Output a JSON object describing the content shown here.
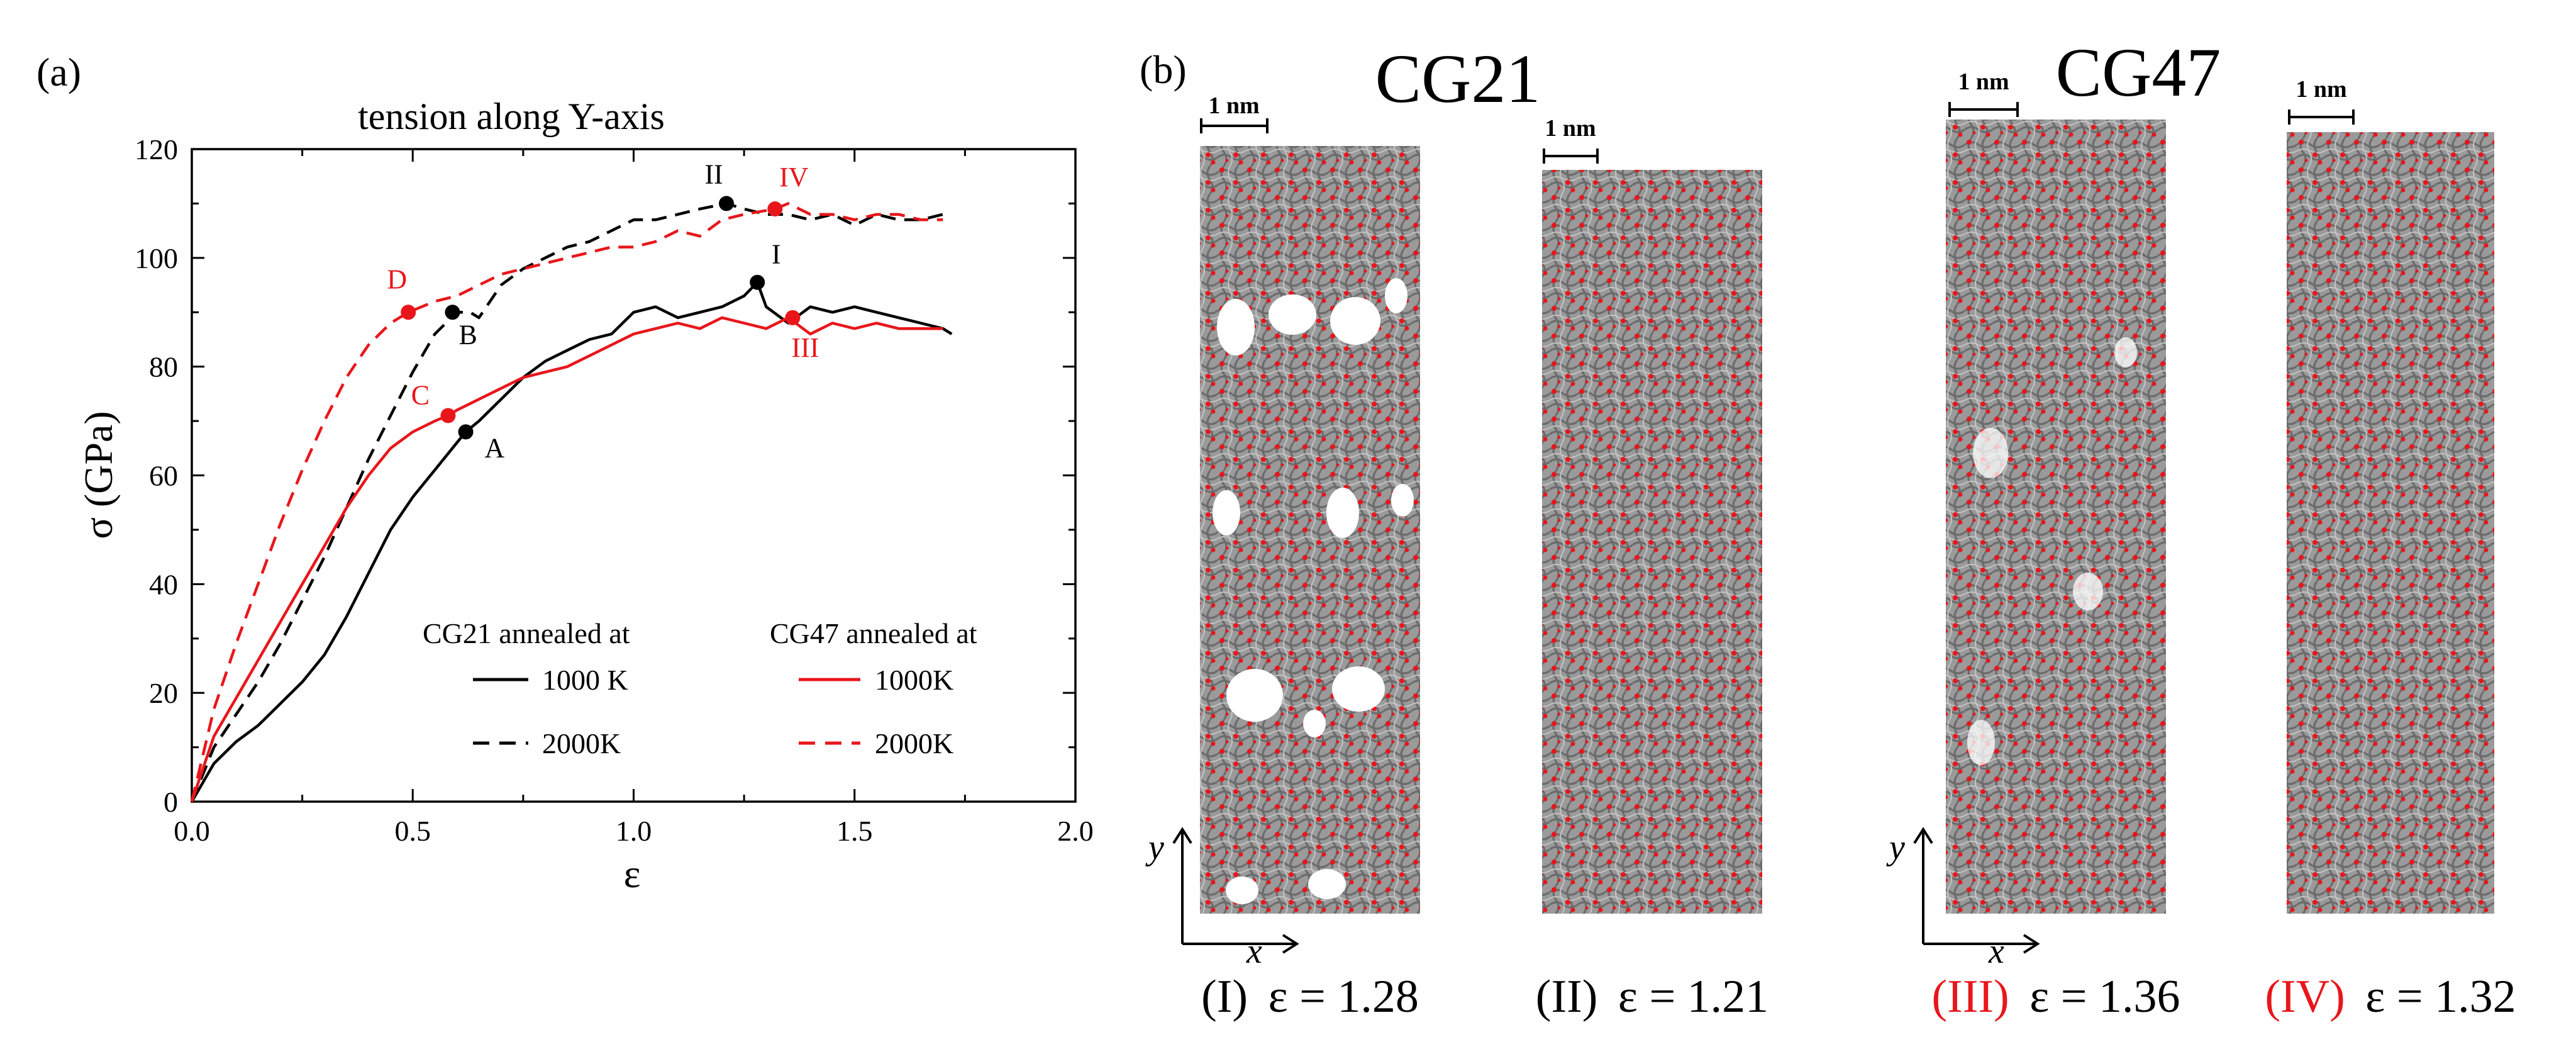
{
  "panels": {
    "a_label": "(a)",
    "b_label": "(b)"
  },
  "colors": {
    "cg21": "#000000",
    "cg47": "#e8161b",
    "atoms_gray": "#7a7a7a",
    "atoms_red": "#e8161b"
  },
  "chart_data": {
    "type": "line",
    "title": "tension along Y-axis",
    "xlabel": "ε",
    "ylabel": "σ (GPa)",
    "xlim": [
      0,
      2.0
    ],
    "ylim": [
      0,
      120
    ],
    "xticks": [
      0,
      0.5,
      1.0,
      1.5,
      2.0
    ],
    "xtick_labels": [
      "0.0",
      "0.5",
      "1.0",
      "1.5",
      "2.0"
    ],
    "yticks": [
      0,
      20,
      40,
      60,
      80,
      100,
      120
    ],
    "ytick_labels": [
      "0",
      "20",
      "40",
      "60",
      "80",
      "100",
      "120"
    ],
    "legend": {
      "group1_title": "CG21 annealed at",
      "group2_title": "CG47 annealed at"
    },
    "series": [
      {
        "name": "1000 K",
        "group": "CG21",
        "color": "#000000",
        "dash": "solid",
        "x": [
          0,
          0.05,
          0.1,
          0.15,
          0.2,
          0.25,
          0.3,
          0.35,
          0.4,
          0.45,
          0.5,
          0.55,
          0.6,
          0.62,
          0.65,
          0.7,
          0.75,
          0.8,
          0.85,
          0.9,
          0.95,
          1.0,
          1.05,
          1.1,
          1.15,
          1.2,
          1.25,
          1.28,
          1.3,
          1.35,
          1.4,
          1.45,
          1.5,
          1.55,
          1.6,
          1.65,
          1.7,
          1.72
        ],
        "y": [
          0,
          7,
          11,
          14,
          18,
          22,
          27,
          34,
          42,
          50,
          56,
          61,
          66,
          68,
          70,
          74,
          78,
          81,
          83,
          85,
          86,
          90,
          91,
          89,
          90,
          91,
          93,
          95.5,
          91,
          88,
          91,
          90,
          91,
          90,
          89,
          88,
          87,
          86
        ]
      },
      {
        "name": "2000K",
        "group": "CG21",
        "color": "#000000",
        "dash": "dashed",
        "x": [
          0,
          0.05,
          0.1,
          0.15,
          0.2,
          0.25,
          0.3,
          0.35,
          0.4,
          0.45,
          0.5,
          0.55,
          0.6,
          0.63,
          0.65,
          0.7,
          0.75,
          0.8,
          0.85,
          0.9,
          0.95,
          1.0,
          1.05,
          1.1,
          1.15,
          1.21,
          1.25,
          1.3,
          1.35,
          1.4,
          1.45,
          1.5,
          1.55,
          1.6,
          1.65,
          1.7
        ],
        "y": [
          0,
          10,
          16,
          22,
          29,
          37,
          45,
          54,
          63,
          71,
          79,
          86,
          90,
          90,
          89,
          95,
          98,
          100,
          102,
          103,
          105,
          107,
          107,
          108,
          109,
          110,
          109,
          108,
          108,
          107,
          108,
          106,
          108,
          107,
          107,
          108
        ]
      },
      {
        "name": "1000K",
        "group": "CG47",
        "color": "#e8161b",
        "dash": "solid",
        "x": [
          0,
          0.05,
          0.1,
          0.15,
          0.2,
          0.25,
          0.3,
          0.35,
          0.4,
          0.45,
          0.5,
          0.55,
          0.58,
          0.6,
          0.65,
          0.7,
          0.75,
          0.8,
          0.85,
          0.9,
          0.95,
          1.0,
          1.05,
          1.1,
          1.15,
          1.2,
          1.25,
          1.3,
          1.35,
          1.4,
          1.45,
          1.5,
          1.55,
          1.6,
          1.65,
          1.7
        ],
        "y": [
          0,
          12,
          19,
          26,
          33,
          40,
          47,
          54,
          60,
          65,
          68,
          70,
          71,
          72,
          74,
          76,
          78,
          79,
          80,
          82,
          84,
          86,
          87,
          88,
          87,
          89,
          88,
          87,
          89,
          86,
          88,
          87,
          88,
          87,
          87,
          87
        ]
      },
      {
        "name": "2000K",
        "group": "CG47",
        "color": "#e8161b",
        "dash": "dashed",
        "x": [
          0,
          0.05,
          0.1,
          0.15,
          0.2,
          0.25,
          0.3,
          0.35,
          0.4,
          0.45,
          0.49,
          0.55,
          0.6,
          0.65,
          0.7,
          0.75,
          0.8,
          0.85,
          0.9,
          0.95,
          1.0,
          1.05,
          1.1,
          1.15,
          1.2,
          1.25,
          1.32,
          1.35,
          1.4,
          1.45,
          1.5,
          1.55,
          1.6,
          1.65,
          1.7
        ],
        "y": [
          0,
          17,
          29,
          40,
          51,
          61,
          70,
          78,
          84,
          88,
          90,
          92,
          93,
          95,
          97,
          98,
          99,
          100,
          101,
          102,
          102,
          103,
          105,
          104,
          107,
          108,
          109,
          110,
          108,
          108,
          107,
          108,
          108,
          107,
          107
        ]
      }
    ],
    "markers": [
      {
        "label": "A",
        "x": 0.62,
        "y": 68,
        "color": "#000000"
      },
      {
        "label": "B",
        "x": 0.59,
        "y": 90,
        "color": "#000000"
      },
      {
        "label": "I",
        "x": 1.28,
        "y": 95.5,
        "color": "#000000"
      },
      {
        "label": "II",
        "x": 1.21,
        "y": 110,
        "color": "#000000"
      },
      {
        "label": "C",
        "x": 0.58,
        "y": 71,
        "color": "#e8161b"
      },
      {
        "label": "D",
        "x": 0.49,
        "y": 90,
        "color": "#e8161b"
      },
      {
        "label": "III",
        "x": 1.36,
        "y": 89,
        "color": "#e8161b"
      },
      {
        "label": "IV",
        "x": 1.32,
        "y": 109,
        "color": "#e8161b"
      }
    ]
  },
  "snapshots": {
    "cg21_title": "CG21",
    "cg47_title": "CG47",
    "scale_bar": "1 nm",
    "axis_x": "x",
    "axis_y": "y",
    "items": [
      {
        "roman": "(I)",
        "strain": "ε = 1.28",
        "roman_color": "#000000"
      },
      {
        "roman": "(II)",
        "strain": "ε = 1.21",
        "roman_color": "#000000"
      },
      {
        "roman": "(III)",
        "strain": "ε = 1.36",
        "roman_color": "#e8161b"
      },
      {
        "roman": "(IV)",
        "strain": "ε = 1.32",
        "roman_color": "#e8161b"
      }
    ]
  }
}
